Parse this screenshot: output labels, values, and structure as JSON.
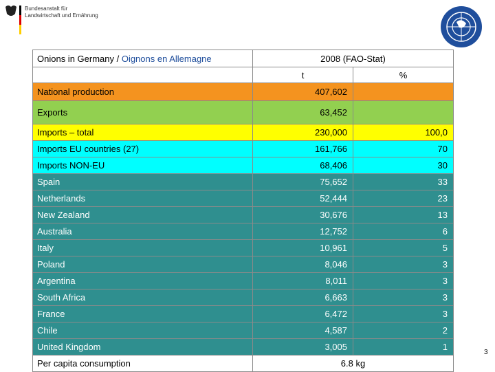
{
  "header": {
    "org_line1": "Bundesanstalt für",
    "org_line2": "Landwirtschaft und Ernährung"
  },
  "table": {
    "title_black": "Onions in Germany / ",
    "title_blue": "Oignons en Allemagne",
    "period": "2008 (FAO-Stat)",
    "unit_t": "t",
    "unit_pct": "%",
    "rows": [
      {
        "label": "National production",
        "t": "407,602",
        "fill": "#f4931f",
        "text": "#000000"
      },
      {
        "label": "Exports",
        "t": "63,452",
        "fill": "#92d050",
        "text": "#000000"
      },
      {
        "label": "Imports – total",
        "t": "230,000",
        "pct": "100,0",
        "fill": "#ffff00",
        "text": "#000000"
      },
      {
        "label": "Imports EU countries (27)",
        "t": "161,766",
        "pct": "70",
        "fill": "#00ffff",
        "text": "#000000"
      },
      {
        "label": "Imports NON-EU",
        "t": "68,406",
        "pct": "30",
        "fill": "#00ffff",
        "text": "#000000"
      },
      {
        "label": "Spain",
        "t": "75,652",
        "pct": "33",
        "fill": "#2f8f8f",
        "text": "#ffffff"
      },
      {
        "label": "Netherlands",
        "t": "52,444",
        "pct": "23",
        "fill": "#2f8f8f",
        "text": "#ffffff"
      },
      {
        "label": "New Zealand",
        "t": "30,676",
        "pct": "13",
        "fill": "#2f8f8f",
        "text": "#ffffff"
      },
      {
        "label": "Australia",
        "t": "12,752",
        "pct": "6",
        "fill": "#2f8f8f",
        "text": "#ffffff"
      },
      {
        "label": "Italy",
        "t": "10,961",
        "pct": "5",
        "fill": "#2f8f8f",
        "text": "#ffffff"
      },
      {
        "label": "Poland",
        "t": "8,046",
        "pct": "3",
        "fill": "#2f8f8f",
        "text": "#ffffff"
      },
      {
        "label": "Argentina",
        "t": "8,011",
        "pct": "3",
        "fill": "#2f8f8f",
        "text": "#ffffff"
      },
      {
        "label": "South Africa",
        "t": "6,663",
        "pct": "3",
        "fill": "#2f8f8f",
        "text": "#ffffff"
      },
      {
        "label": "France",
        "t": "6,472",
        "pct": "3",
        "fill": "#2f8f8f",
        "text": "#ffffff"
      },
      {
        "label": "Chile",
        "t": "4,587",
        "pct": "2",
        "fill": "#2f8f8f",
        "text": "#ffffff"
      },
      {
        "label": "United Kingdom",
        "t": "3,005",
        "pct": "1",
        "fill": "#2f8f8f",
        "text": "#ffffff"
      }
    ],
    "footer_label": "Per capita consumption",
    "footer_value": "6.8 kg"
  },
  "page_number": "3"
}
